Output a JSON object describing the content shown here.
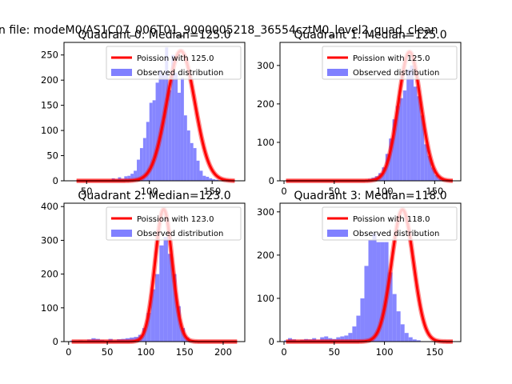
{
  "suptitle": "n file: modeM0/AS1C07_006T01_9000005218_36554cztM0_level2_quad_clean",
  "colors": {
    "poisson": "#ff0000",
    "observed": "#8080ff",
    "axes": "#000000",
    "background": "#ffffff"
  },
  "chart_data": [
    {
      "type": "bar",
      "title": "Quadrant 0: Median=125.0",
      "xlim": [
        32,
        176
      ],
      "ylim": [
        0,
        275
      ],
      "xticks": [
        50,
        100,
        150
      ],
      "yticks": [
        0,
        50,
        100,
        150,
        200,
        250
      ],
      "legend": {
        "position": "top-right",
        "entries": [
          "Poission with 125.0",
          "Observed distribution"
        ]
      },
      "series": [
        {
          "name": "Observed distribution",
          "type": "histogram",
          "bin_width": 2.5,
          "bin_start": 70,
          "values": [
            5,
            3,
            7,
            4,
            9,
            10,
            14,
            20,
            42,
            65,
            85,
            117,
            155,
            160,
            195,
            220,
            210,
            265,
            180,
            250,
            215,
            175,
            205,
            130,
            100,
            75,
            65,
            40,
            20,
            10,
            8,
            5,
            3,
            2
          ]
        },
        {
          "name": "Poission with 125.0",
          "type": "line",
          "mean": 125,
          "x_range": [
            42,
            168
          ],
          "peak": 258
        }
      ]
    },
    {
      "type": "bar",
      "title": "Quadrant 1: Median=125.0",
      "xlim": [
        -4,
        176
      ],
      "ylim": [
        0,
        360
      ],
      "xticks": [
        0,
        50,
        100,
        150
      ],
      "yticks": [
        0,
        100,
        200,
        300
      ],
      "legend": {
        "position": "top-right",
        "entries": [
          "Poission with 125.0",
          "Observed distribution"
        ]
      },
      "series": [
        {
          "name": "Observed distribution",
          "type": "histogram",
          "bin_width": 3.5,
          "bin_start": 80,
          "values": [
            3,
            5,
            8,
            12,
            20,
            35,
            70,
            110,
            160,
            195,
            215,
            235,
            290,
            300,
            245,
            220,
            170,
            95,
            65,
            35,
            15,
            6,
            3
          ]
        },
        {
          "name": "Poission with 125.0",
          "type": "line",
          "mean": 125,
          "x_range": [
            2,
            168
          ],
          "peak": 335
        }
      ]
    },
    {
      "type": "bar",
      "title": "Quadrant 2: Median=123.0",
      "xlim": [
        -6,
        228
      ],
      "ylim": [
        0,
        410
      ],
      "xticks": [
        0,
        50,
        100,
        150,
        200
      ],
      "yticks": [
        0,
        100,
        200,
        300,
        400
      ],
      "legend": {
        "position": "top-right",
        "entries": [
          "Poission with 123.0",
          "Observed distribution"
        ]
      },
      "series": [
        {
          "name": "Observed distribution",
          "type": "histogram",
          "bin_width": 5.5,
          "bin_start": 2,
          "values": [
            3,
            0,
            4,
            3,
            6,
            10,
            8,
            5,
            3,
            8,
            4,
            7,
            8,
            10,
            12,
            14,
            20,
            40,
            85,
            155,
            200,
            285,
            310,
            260,
            200,
            105,
            40,
            12,
            5,
            2,
            0,
            0,
            0,
            0,
            0,
            0,
            0,
            0,
            0,
            0
          ]
        },
        {
          "name": "Poission with 123.0",
          "type": "line",
          "mean": 123,
          "x_range": [
            4,
            218
          ],
          "peak": 392
        }
      ]
    },
    {
      "type": "bar",
      "title": "Quadrant 3: Median=118.0",
      "xlim": [
        -4,
        176
      ],
      "ylim": [
        0,
        320
      ],
      "xticks": [
        0,
        50,
        100,
        150
      ],
      "yticks": [
        0,
        100,
        200,
        300
      ],
      "legend": {
        "position": "top-right",
        "entries": [
          "Poission with 118.0",
          "Observed distribution"
        ]
      },
      "series": [
        {
          "name": "Observed distribution",
          "type": "histogram",
          "bin_width": 4,
          "bin_start": 0,
          "values": [
            3,
            8,
            5,
            3,
            4,
            6,
            5,
            8,
            4,
            10,
            12,
            8,
            6,
            10,
            12,
            14,
            20,
            35,
            60,
            100,
            175,
            235,
            250,
            230,
            230,
            230,
            160,
            110,
            70,
            40,
            20,
            10,
            5,
            3
          ]
        },
        {
          "name": "Poission with 118.0",
          "type": "line",
          "mean": 118,
          "x_range": [
            2,
            168
          ],
          "peak": 305
        }
      ]
    }
  ]
}
